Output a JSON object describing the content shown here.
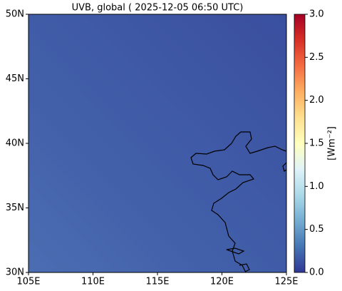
{
  "chart_data": {
    "type": "map",
    "title": "UVB, global ( 2025-12-05 06:50 UTC)",
    "xlim": [
      105,
      125
    ],
    "xticks": [
      {
        "value": 105,
        "label": "105E"
      },
      {
        "value": 110,
        "label": "110E"
      },
      {
        "value": 115,
        "label": "115E"
      },
      {
        "value": 120,
        "label": "120E"
      },
      {
        "value": 125,
        "label": "125E"
      }
    ],
    "ylim": [
      30,
      50
    ],
    "yticks": [
      {
        "value": 30,
        "label": "30N"
      },
      {
        "value": 35,
        "label": "35N"
      },
      {
        "value": 40,
        "label": "40N"
      },
      {
        "value": 45,
        "label": "45N"
      },
      {
        "value": 50,
        "label": "50N"
      }
    ],
    "colorbar": {
      "label": "[Wm⁻²]",
      "lim": [
        0,
        3
      ],
      "ticks": [
        {
          "value": 0,
          "label": "0.0"
        },
        0.5,
        {
          "value": 1,
          "label": "1.0"
        },
        1.5,
        {
          "value": 2,
          "label": "2.0"
        },
        2.5,
        {
          "value": 3,
          "label": "3.0"
        }
      ],
      "colormap": [
        "#313695",
        "#4575b4",
        "#74add1",
        "#abd9e9",
        "#e0f3f8",
        "#ffffbf",
        "#fee090",
        "#fdae61",
        "#f46d43",
        "#d73027",
        "#a50026"
      ]
    }
  }
}
